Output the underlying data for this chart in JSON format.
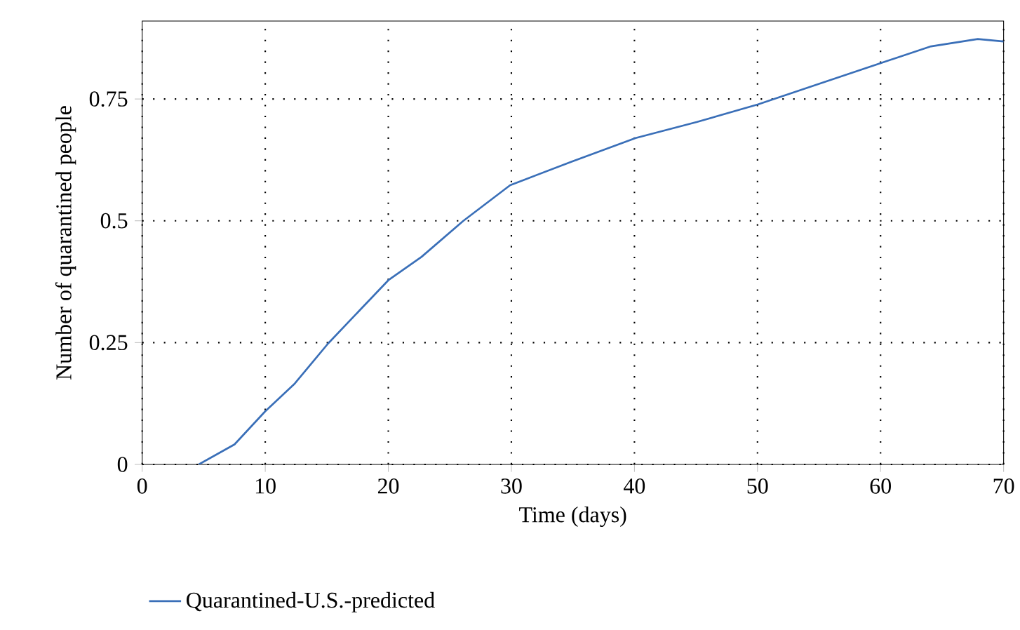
{
  "chart_data": {
    "type": "line",
    "xlabel": "Time (days)",
    "ylabel": "Number of quarantined people",
    "x": [
      4.6,
      7.5,
      10,
      12.4,
      15.1,
      20,
      22.7,
      26.1,
      29.9,
      34.85,
      40.1,
      45.1,
      50.05,
      55,
      60.05,
      64.1,
      67.9,
      70
    ],
    "series": [
      {
        "name": "Quarantined-U.S.-predicted",
        "color": "#3a6fb8",
        "values": [
          0,
          0.041,
          0.109,
          0.166,
          0.248,
          0.378,
          0.426,
          0.5,
          0.573,
          0.621,
          0.67,
          0.703,
          0.739,
          0.781,
          0.824,
          0.858,
          0.873,
          0.868
        ]
      }
    ],
    "xlim": [
      0,
      70
    ],
    "ylim": [
      0,
      0.91
    ],
    "xticks": [
      0,
      10,
      20,
      30,
      40,
      50,
      60,
      70
    ],
    "yticks": [
      0,
      0.25,
      0.5,
      0.75
    ],
    "grid": true,
    "legend": "bottom",
    "marker": "none",
    "line_style": "solid"
  }
}
